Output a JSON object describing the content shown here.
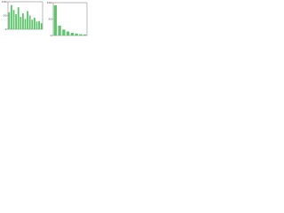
{
  "chart_data": [
    {
      "type": "bar",
      "categories": [
        null,
        null,
        null,
        null,
        null,
        null,
        null,
        null,
        null,
        null,
        null,
        null,
        null,
        null,
        null
      ],
      "values": [
        62,
        88,
        70,
        55,
        80,
        45,
        58,
        38,
        66,
        50,
        35,
        42,
        28,
        30,
        22
      ],
      "color": "#5cc66b",
      "ylim": [
        0,
        100
      ],
      "yticks": [
        0,
        50,
        100
      ],
      "grid": false
    },
    {
      "type": "bar",
      "categories": [
        null,
        null,
        null,
        null,
        null,
        null,
        null,
        null
      ],
      "values": [
        92,
        30,
        18,
        12,
        8,
        6,
        4,
        3
      ],
      "color": "#5cc66b",
      "ylim": [
        0,
        100
      ],
      "yticks": [
        0,
        50,
        100
      ],
      "grid": false
    }
  ]
}
